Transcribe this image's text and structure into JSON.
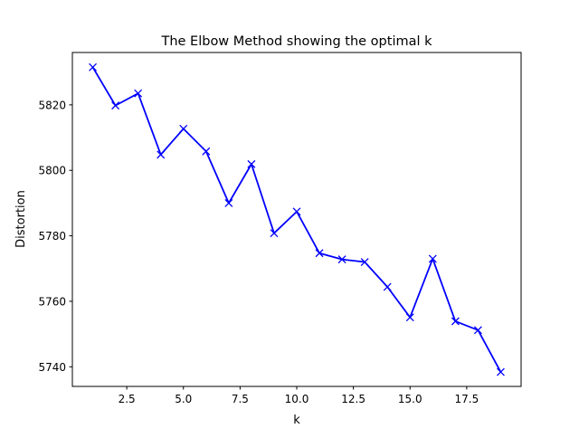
{
  "chart_data": {
    "type": "line",
    "title": "The Elbow Method showing the optimal k",
    "xlabel": "k",
    "ylabel": "Distortion",
    "xlim": [
      0.1,
      19.9
    ],
    "ylim": [
      5734,
      5836
    ],
    "xticks": [
      2.5,
      5.0,
      7.5,
      10.0,
      12.5,
      15.0,
      17.5
    ],
    "xtick_labels": [
      "2.5",
      "5.0",
      "7.5",
      "10.0",
      "12.5",
      "15.0",
      "17.5"
    ],
    "yticks": [
      5740,
      5760,
      5780,
      5800,
      5820
    ],
    "ytick_labels": [
      "5740",
      "5760",
      "5780",
      "5800",
      "5820"
    ],
    "grid": false,
    "series": [
      {
        "color": "#0000ff",
        "marker": "x",
        "x": [
          1,
          2,
          3,
          4,
          5,
          6,
          7,
          8,
          9,
          10,
          11,
          12,
          13,
          14,
          15,
          16,
          17,
          18,
          19
        ],
        "y": [
          5831.5,
          5819.8,
          5823.5,
          5804.8,
          5812.7,
          5805.8,
          5790.0,
          5801.9,
          5780.8,
          5787.4,
          5774.7,
          5772.8,
          5772.0,
          5764.4,
          5755.1,
          5773.0,
          5753.9,
          5751.2,
          5738.4
        ]
      }
    ]
  }
}
